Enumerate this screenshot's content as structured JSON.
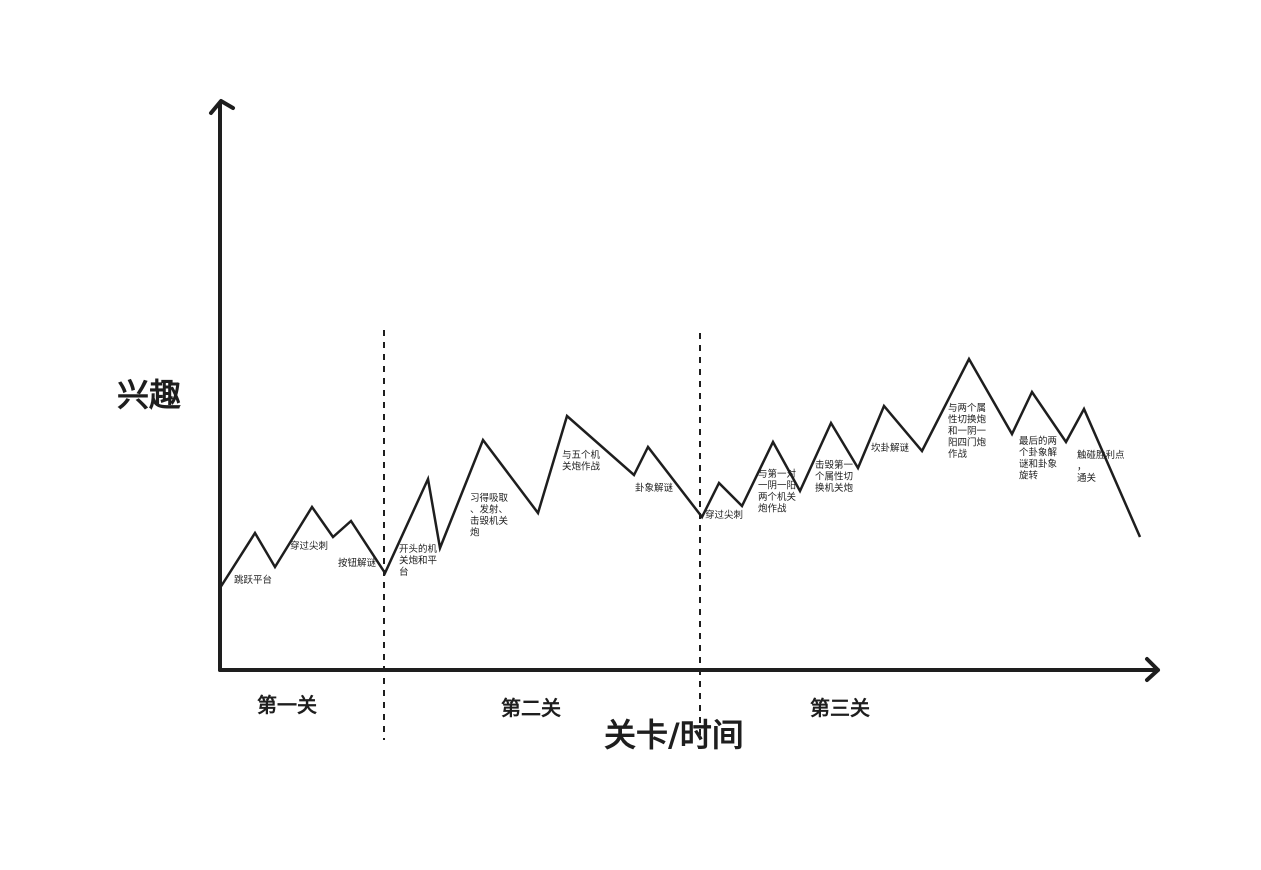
{
  "axes": {
    "y_label": "兴趣",
    "x_label": "关卡/时间"
  },
  "levels": [
    {
      "label": "第一关"
    },
    {
      "label": "第二关"
    },
    {
      "label": "第三关"
    }
  ],
  "annotations": [
    {
      "lines": [
        "跳跃平台"
      ]
    },
    {
      "lines": [
        "穿过尖刺"
      ]
    },
    {
      "lines": [
        "按钮解谜"
      ]
    },
    {
      "lines": [
        "开头的机",
        "关炮和平",
        "台"
      ]
    },
    {
      "lines": [
        "习得吸取",
        "、发射、",
        "击毁机关",
        "炮"
      ]
    },
    {
      "lines": [
        "与五个机",
        "关炮作战"
      ]
    },
    {
      "lines": [
        "卦象解谜"
      ]
    },
    {
      "lines": [
        "穿过尖刺"
      ]
    },
    {
      "lines": [
        "与第一对",
        "一阴一阳",
        "两个机关",
        "炮作战"
      ]
    },
    {
      "lines": [
        "击毁第一",
        "个属性切",
        "换机关炮"
      ]
    },
    {
      "lines": [
        "坎卦解谜"
      ]
    },
    {
      "lines": [
        "与两个属",
        "性切换炮",
        "和一阴一",
        "阳四门炮",
        "作战"
      ]
    },
    {
      "lines": [
        "最后的两",
        "个卦象解",
        "谜和卦象",
        "旋转"
      ]
    },
    {
      "lines": [
        "触碰胜利点",
        "，",
        "通关"
      ]
    }
  ],
  "colors": {
    "ink": "#1e1e1e",
    "background": "#ffffff"
  }
}
